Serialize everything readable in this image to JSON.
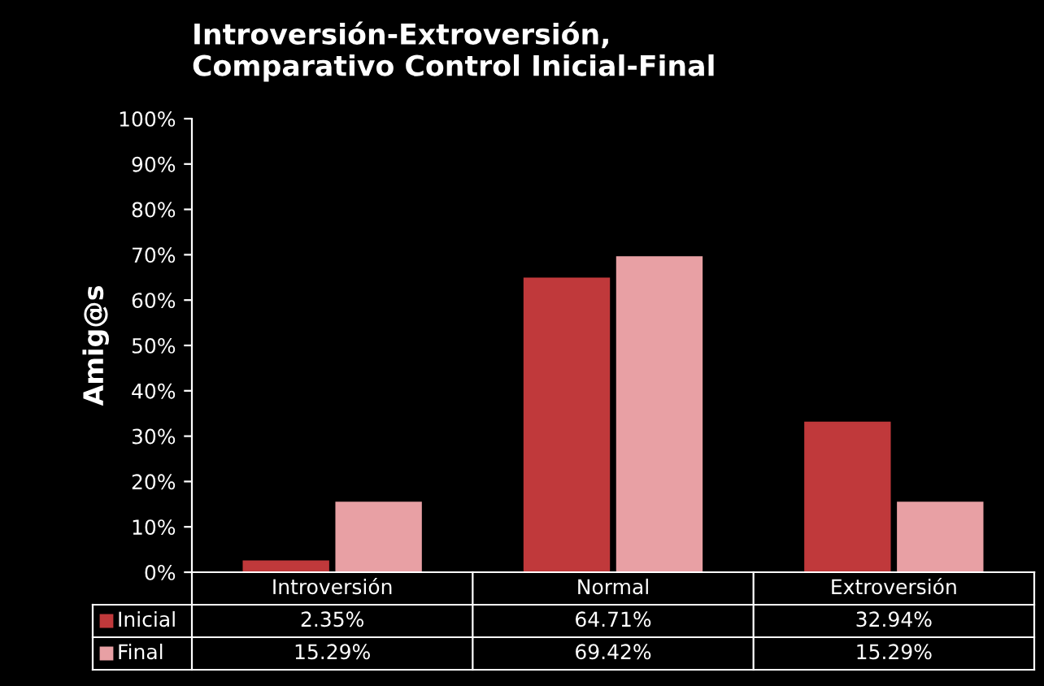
{
  "chart_data": {
    "type": "bar",
    "title": "Introversión-Extroversión,\nComparativo Control Inicial-Final",
    "ylabel": "Amig@s",
    "categories": [
      "Introversión",
      "Normal",
      "Extroversión"
    ],
    "series": [
      {
        "name": "Inicial",
        "color": "#c0393b",
        "values": [
          2.35,
          64.71,
          32.94
        ],
        "value_labels": [
          "2.35%",
          "64.71%",
          "32.94%"
        ]
      },
      {
        "name": "Final",
        "color": "#e8a0a4",
        "values": [
          15.29,
          69.42,
          15.29
        ],
        "value_labels": [
          "15.29%",
          "69.42%",
          "15.29%"
        ]
      }
    ],
    "ylim": [
      0,
      100
    ],
    "yticks": [
      {
        "value": 0,
        "label": "0%"
      },
      {
        "value": 10,
        "label": "10%"
      },
      {
        "value": 20,
        "label": "20%"
      },
      {
        "value": 30,
        "label": "30%"
      },
      {
        "value": 40,
        "label": "40%"
      },
      {
        "value": 50,
        "label": "50%"
      },
      {
        "value": 60,
        "label": "60%"
      },
      {
        "value": 70,
        "label": "70%"
      },
      {
        "value": 80,
        "label": "80%"
      },
      {
        "value": 90,
        "label": "90%"
      },
      {
        "value": 100,
        "label": "100%"
      }
    ],
    "grid": false,
    "legend": "bottom left"
  }
}
